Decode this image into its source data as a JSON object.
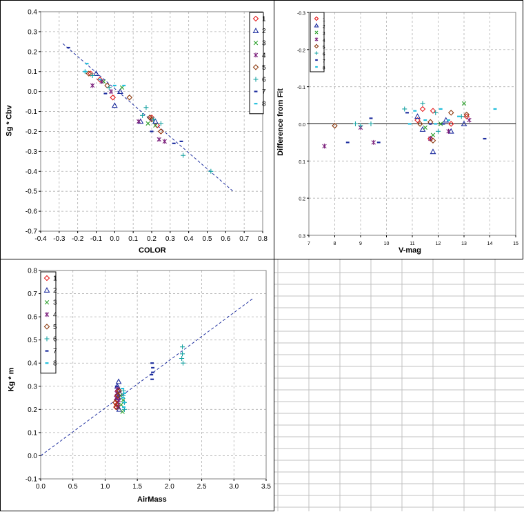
{
  "grid_line_color": "#c0c0c0",
  "series_styles": [
    {
      "name": "1",
      "marker": "diamond",
      "color": "#e41a1c"
    },
    {
      "name": "2",
      "marker": "triangle",
      "color": "#1f2f9f"
    },
    {
      "name": "3",
      "marker": "x",
      "color": "#2ca02c"
    },
    {
      "name": "4",
      "marker": "star",
      "color": "#7b1f7b"
    },
    {
      "name": "5",
      "marker": "circle",
      "color": "#8b3a0f"
    },
    {
      "name": "6",
      "marker": "plus",
      "color": "#17a2a2"
    },
    {
      "name": "7",
      "marker": "dash",
      "color": "#1f2f9f"
    },
    {
      "name": "8",
      "marker": "dash",
      "color": "#22bfdc"
    }
  ],
  "fit_line_color": "#1f2f9f",
  "chart_data": [
    {
      "type": "scatter",
      "title": "",
      "xlabel": "COLOR",
      "ylabel": "Sg * Cbv",
      "xlim": [
        -0.4,
        0.8
      ],
      "ylim": [
        -0.7,
        0.4
      ],
      "x_ticks": [
        "-0.4",
        "-0.3",
        "-0.2",
        "-0.1",
        "0.0",
        "0.1",
        "0.2",
        "0.3",
        "0.4",
        "0.5",
        "0.6",
        "0.7",
        "0.8"
      ],
      "y_ticks": [
        "0.4",
        "0.3",
        "0.2",
        "0.1",
        "0.0",
        "-0.1",
        "-0.2",
        "-0.3",
        "-0.4",
        "-0.5",
        "-0.6",
        "-0.7"
      ],
      "grid": true,
      "legend": "top-right",
      "fit_line": [
        [
          -0.28,
          0.24
        ],
        [
          0.64,
          -0.5
        ]
      ],
      "series": [
        {
          "name": "1",
          "points": [
            [
              -0.13,
              0.09
            ],
            [
              -0.08,
              0.06
            ],
            [
              0.2,
              -0.13
            ],
            [
              0.23,
              -0.17
            ],
            [
              0.25,
              -0.2
            ],
            [
              -0.01,
              -0.03
            ]
          ]
        },
        {
          "name": "2",
          "points": [
            [
              -0.1,
              0.09
            ],
            [
              0.0,
              -0.07
            ],
            [
              0.22,
              -0.15
            ],
            [
              0.14,
              -0.15
            ],
            [
              0.03,
              0.0
            ]
          ]
        },
        {
          "name": "3",
          "points": [
            [
              -0.06,
              0.05
            ],
            [
              0.04,
              0.02
            ],
            [
              0.22,
              -0.17
            ],
            [
              0.18,
              -0.16
            ]
          ]
        },
        {
          "name": "4",
          "points": [
            [
              -0.12,
              0.03
            ],
            [
              -0.07,
              0.05
            ],
            [
              -0.02,
              0.0
            ],
            [
              0.24,
              -0.24
            ],
            [
              0.27,
              -0.25
            ],
            [
              0.13,
              -0.15
            ]
          ]
        },
        {
          "name": "5",
          "points": [
            [
              -0.14,
              0.09
            ],
            [
              -0.04,
              0.03
            ],
            [
              0.08,
              -0.03
            ],
            [
              0.2,
              -0.14
            ],
            [
              0.25,
              -0.2
            ],
            [
              0.19,
              -0.13
            ]
          ]
        },
        {
          "name": "6",
          "points": [
            [
              -0.16,
              0.1
            ],
            [
              -0.12,
              0.08
            ],
            [
              -0.03,
              0.02
            ],
            [
              0.17,
              -0.08
            ],
            [
              0.21,
              -0.14
            ],
            [
              0.37,
              -0.32
            ],
            [
              0.52,
              -0.4
            ],
            [
              0.25,
              -0.16
            ],
            [
              0.15,
              -0.12
            ]
          ]
        },
        {
          "name": "7",
          "points": [
            [
              -0.25,
              0.22
            ],
            [
              -0.05,
              -0.01
            ],
            [
              0.2,
              -0.2
            ],
            [
              0.32,
              -0.26
            ],
            [
              0.36,
              -0.25
            ]
          ]
        },
        {
          "name": "8",
          "points": [
            [
              -0.15,
              0.14
            ],
            [
              -0.08,
              0.06
            ],
            [
              0.0,
              0.03
            ],
            [
              0.05,
              0.03
            ],
            [
              -0.16,
              0.1
            ]
          ]
        }
      ]
    },
    {
      "type": "scatter",
      "title": "",
      "xlabel": "V-mag",
      "ylabel": "Difference from Fit",
      "xlim": [
        7,
        15
      ],
      "ylim": [
        -0.3,
        0.3
      ],
      "y_reversed": true,
      "x_ticks": [
        "7",
        "8",
        "9",
        "10",
        "11",
        "12",
        "13",
        "14",
        "15"
      ],
      "y_ticks": [
        "-0.3",
        "-0.2",
        "-0.1",
        "0.0",
        "0.1",
        "0.2",
        "0.3"
      ],
      "grid": true,
      "zero_line": true,
      "legend": "top-left",
      "series": [
        {
          "name": "1",
          "points": [
            [
              11.4,
              -0.04
            ],
            [
              11.7,
              0.04
            ],
            [
              11.8,
              -0.035
            ],
            [
              11.2,
              -0.01
            ],
            [
              12.5,
              0.0
            ],
            [
              13.1,
              -0.02
            ]
          ]
        },
        {
          "name": "2",
          "points": [
            [
              11.8,
              0.075
            ],
            [
              11.4,
              0.015
            ],
            [
              12.5,
              0.02
            ],
            [
              13.0,
              0.0
            ],
            [
              11.2,
              -0.02
            ],
            [
              12.3,
              -0.01
            ]
          ]
        },
        {
          "name": "3",
          "points": [
            [
              13.0,
              -0.055
            ],
            [
              11.8,
              0.03
            ],
            [
              11.5,
              0.01
            ],
            [
              12.1,
              0.0
            ]
          ]
        },
        {
          "name": "4",
          "points": [
            [
              7.6,
              0.06
            ],
            [
              9.0,
              0.01
            ],
            [
              9.5,
              0.05
            ],
            [
              11.7,
              0.04
            ],
            [
              12.4,
              0.02
            ],
            [
              13.2,
              -0.01
            ]
          ]
        },
        {
          "name": "5",
          "points": [
            [
              8.0,
              0.005
            ],
            [
              11.7,
              -0.005
            ],
            [
              12.5,
              -0.03
            ],
            [
              11.3,
              0.0
            ],
            [
              13.1,
              -0.025
            ],
            [
              11.8,
              0.045
            ]
          ]
        },
        {
          "name": "6",
          "points": [
            [
              10.7,
              -0.04
            ],
            [
              11.4,
              -0.055
            ],
            [
              11.9,
              -0.03
            ],
            [
              12.0,
              0.02
            ],
            [
              9.4,
              0.0
            ],
            [
              9.0,
              0.005
            ],
            [
              8.8,
              0.0
            ],
            [
              12.9,
              -0.02
            ]
          ]
        },
        {
          "name": "7",
          "points": [
            [
              8.5,
              0.05
            ],
            [
              9.7,
              0.05
            ],
            [
              9.4,
              -0.015
            ],
            [
              10.8,
              -0.03
            ],
            [
              11.7,
              0.0
            ],
            [
              13.8,
              0.04
            ],
            [
              12.2,
              0.0
            ]
          ]
        },
        {
          "name": "8",
          "points": [
            [
              10.9,
              0.0
            ],
            [
              11.1,
              -0.035
            ],
            [
              12.1,
              -0.04
            ],
            [
              14.2,
              -0.04
            ],
            [
              11.5,
              -0.01
            ],
            [
              12.4,
              -0.01
            ],
            [
              11.9,
              0.0
            ],
            [
              12.8,
              -0.02
            ]
          ]
        }
      ]
    },
    {
      "type": "scatter",
      "title": "",
      "xlabel": "AirMass",
      "ylabel": "Kg * m",
      "xlim": [
        0.0,
        3.5
      ],
      "ylim": [
        -0.1,
        0.8
      ],
      "x_ticks": [
        "0.0",
        "0.5",
        "1.0",
        "1.5",
        "2.0",
        "2.5",
        "3.0",
        "3.5"
      ],
      "y_ticks": [
        "0.8",
        "0.7",
        "0.6",
        "0.5",
        "0.4",
        "0.3",
        "0.2",
        "0.1",
        "0.0",
        "-0.1"
      ],
      "grid": true,
      "legend": "top-left",
      "fit_line": [
        [
          0.0,
          0.0
        ],
        [
          3.3,
          0.68
        ]
      ],
      "series": [
        {
          "name": "1",
          "points": [
            [
              1.17,
              0.21
            ],
            [
              1.18,
              0.24
            ],
            [
              1.19,
              0.26
            ],
            [
              1.2,
              0.28
            ],
            [
              1.16,
              0.23
            ],
            [
              1.18,
              0.22
            ]
          ]
        },
        {
          "name": "2",
          "points": [
            [
              1.21,
              0.32
            ],
            [
              1.22,
              0.2
            ],
            [
              1.2,
              0.25
            ],
            [
              1.19,
              0.3
            ],
            [
              1.23,
              0.27
            ]
          ]
        },
        {
          "name": "3",
          "points": [
            [
              1.27,
              0.19
            ],
            [
              1.25,
              0.22
            ],
            [
              1.24,
              0.26
            ],
            [
              1.28,
              0.24
            ]
          ]
        },
        {
          "name": "4",
          "points": [
            [
              1.18,
              0.27
            ],
            [
              1.2,
              0.23
            ],
            [
              1.19,
              0.29
            ],
            [
              1.17,
              0.25
            ],
            [
              1.21,
              0.24
            ],
            [
              1.2,
              0.21
            ]
          ]
        },
        {
          "name": "5",
          "points": [
            [
              1.16,
              0.23
            ],
            [
              1.2,
              0.26
            ],
            [
              1.22,
              0.28
            ],
            [
              1.18,
              0.21
            ]
          ]
        },
        {
          "name": "6",
          "points": [
            [
              1.28,
              0.26
            ],
            [
              1.3,
              0.23
            ],
            [
              1.29,
              0.28
            ],
            [
              2.2,
              0.47
            ],
            [
              2.2,
              0.44
            ],
            [
              2.21,
              0.4
            ],
            [
              2.19,
              0.42
            ],
            [
              1.3,
              0.2
            ]
          ]
        },
        {
          "name": "7",
          "points": [
            [
              1.73,
              0.4
            ],
            [
              1.74,
              0.38
            ],
            [
              1.72,
              0.35
            ],
            [
              1.73,
              0.33
            ],
            [
              1.74,
              0.36
            ],
            [
              1.18,
              0.3
            ]
          ]
        },
        {
          "name": "8",
          "points": [
            [
              1.3,
              0.27
            ],
            [
              1.28,
              0.25
            ],
            [
              1.3,
              0.23
            ],
            [
              1.27,
              0.29
            ],
            [
              1.29,
              0.21
            ]
          ]
        }
      ]
    }
  ]
}
